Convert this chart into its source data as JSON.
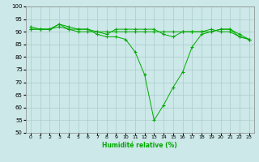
{
  "xlabel": "Humidité relative (%)",
  "bg_color": "#cce8e8",
  "grid_color": "#aacccc",
  "line_color": "#00aa00",
  "marker_color": "#00aa00",
  "ylim": [
    50,
    100
  ],
  "yticks": [
    50,
    55,
    60,
    65,
    70,
    75,
    80,
    85,
    90,
    95,
    100
  ],
  "xlim": [
    -0.5,
    23.5
  ],
  "xticks": [
    0,
    1,
    2,
    3,
    4,
    5,
    6,
    7,
    8,
    9,
    10,
    11,
    12,
    13,
    14,
    15,
    16,
    17,
    18,
    19,
    20,
    21,
    22,
    23
  ],
  "series": [
    [
      91,
      91,
      91,
      93,
      92,
      91,
      91,
      89,
      88,
      88,
      87,
      82,
      73,
      55,
      61,
      68,
      74,
      84,
      89,
      90,
      91,
      91,
      89,
      87
    ],
    [
      91,
      91,
      91,
      92,
      91,
      90,
      90,
      90,
      90,
      90,
      90,
      90,
      90,
      90,
      90,
      90,
      90,
      90,
      90,
      90,
      91,
      91,
      88,
      87
    ],
    [
      92,
      91,
      91,
      93,
      91,
      91,
      91,
      90,
      89,
      91,
      91,
      91,
      91,
      91,
      89,
      88,
      90,
      90,
      90,
      91,
      90,
      90,
      88,
      87
    ]
  ]
}
